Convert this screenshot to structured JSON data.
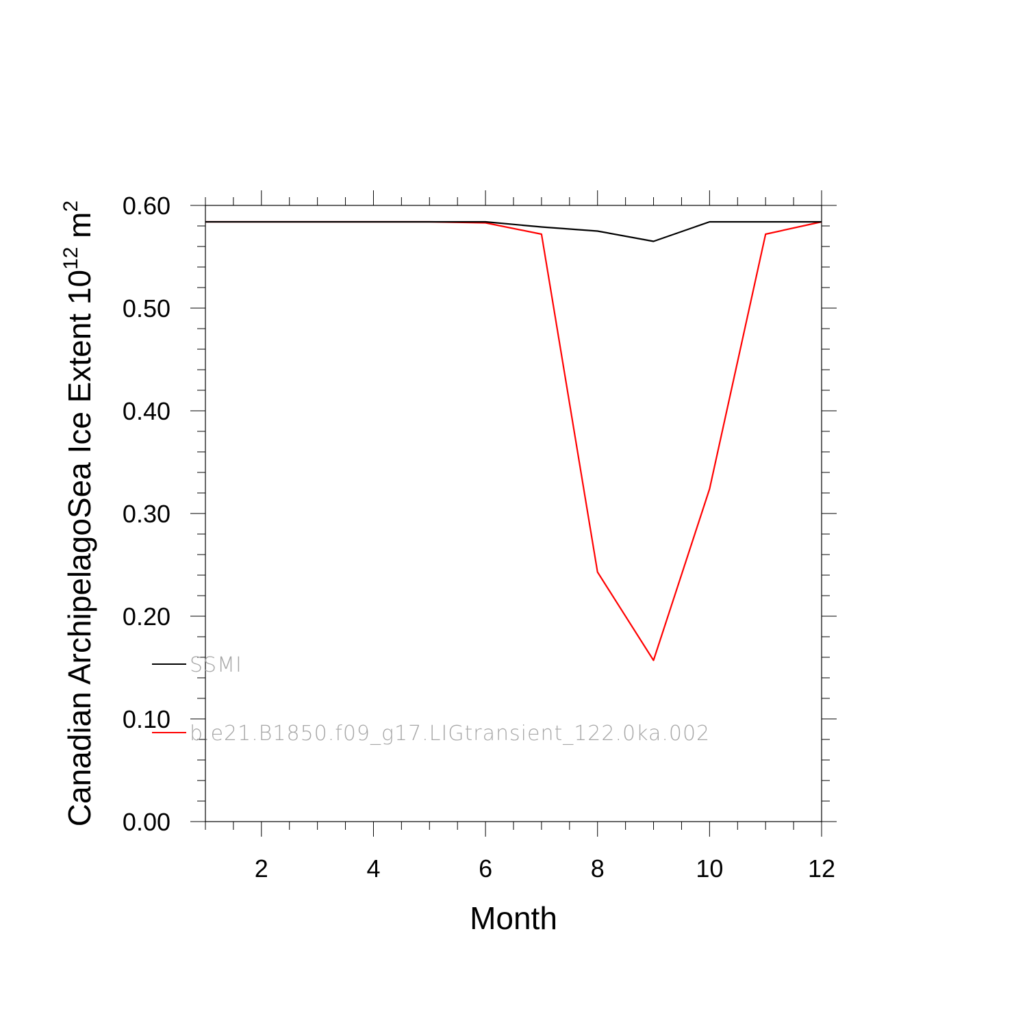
{
  "chart_data": {
    "type": "line",
    "title": "",
    "xlabel": "Month",
    "ylabel": {
      "base": "Canadian ArchipelagoSea Ice Extent 10",
      "exponent1": "12",
      "unit": " m",
      "exponent2": "2"
    },
    "xlim": [
      1,
      12
    ],
    "ylim": [
      0.0,
      0.6
    ],
    "x_ticks": [
      "2",
      "4",
      "6",
      "8",
      "10",
      "12"
    ],
    "y_ticks": [
      "0.00",
      "0.10",
      "0.20",
      "0.30",
      "0.40",
      "0.50",
      "0.60"
    ],
    "grid": false,
    "legend_position": "left, inside plot",
    "x": [
      1,
      2,
      3,
      4,
      5,
      6,
      7,
      8,
      9,
      10,
      11,
      12
    ],
    "series": [
      {
        "name": "SSMI",
        "color": "#000000",
        "values": [
          0.584,
          0.584,
          0.584,
          0.584,
          0.584,
          0.584,
          0.579,
          0.575,
          0.565,
          0.584,
          0.584,
          0.584
        ]
      },
      {
        "name": "b.e21.B1850.f09_g17.LIGtransient_122.0ka.002",
        "color": "#ff0000",
        "values": [
          0.584,
          0.584,
          0.584,
          0.584,
          0.584,
          0.583,
          0.572,
          0.243,
          0.157,
          0.324,
          0.572,
          0.584
        ]
      }
    ]
  }
}
